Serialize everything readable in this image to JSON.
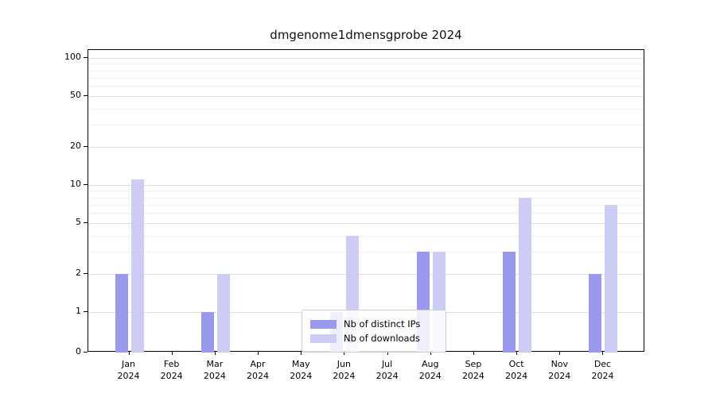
{
  "chart_data": {
    "type": "bar",
    "title": "dmgenome1dmensgprobe 2024",
    "xlabel": "",
    "ylabel": "",
    "year_label": "2024",
    "categories": [
      "Jan",
      "Feb",
      "Mar",
      "Apr",
      "May",
      "Jun",
      "Jul",
      "Aug",
      "Sep",
      "Oct",
      "Nov",
      "Dec"
    ],
    "series": [
      {
        "name": "Nb of distinct IPs",
        "color": "#9999ee",
        "values": [
          2,
          0,
          1,
          0,
          0,
          1,
          0,
          3,
          0,
          3,
          0,
          2
        ]
      },
      {
        "name": "Nb of downloads",
        "color": "#ccccf5",
        "values": [
          11,
          0,
          2,
          0,
          0,
          4,
          0,
          3,
          0,
          8,
          0,
          7
        ]
      }
    ],
    "yscale": "symlog",
    "ylim": [
      0,
      100
    ],
    "yticks": [
      0,
      1,
      2,
      5,
      10,
      20,
      50,
      100
    ],
    "minor_yticks": [
      3,
      4,
      6,
      7,
      8,
      9,
      30,
      40,
      60,
      70,
      80,
      90
    ],
    "grid": "horizontal",
    "legend_position": "bottom-center"
  }
}
